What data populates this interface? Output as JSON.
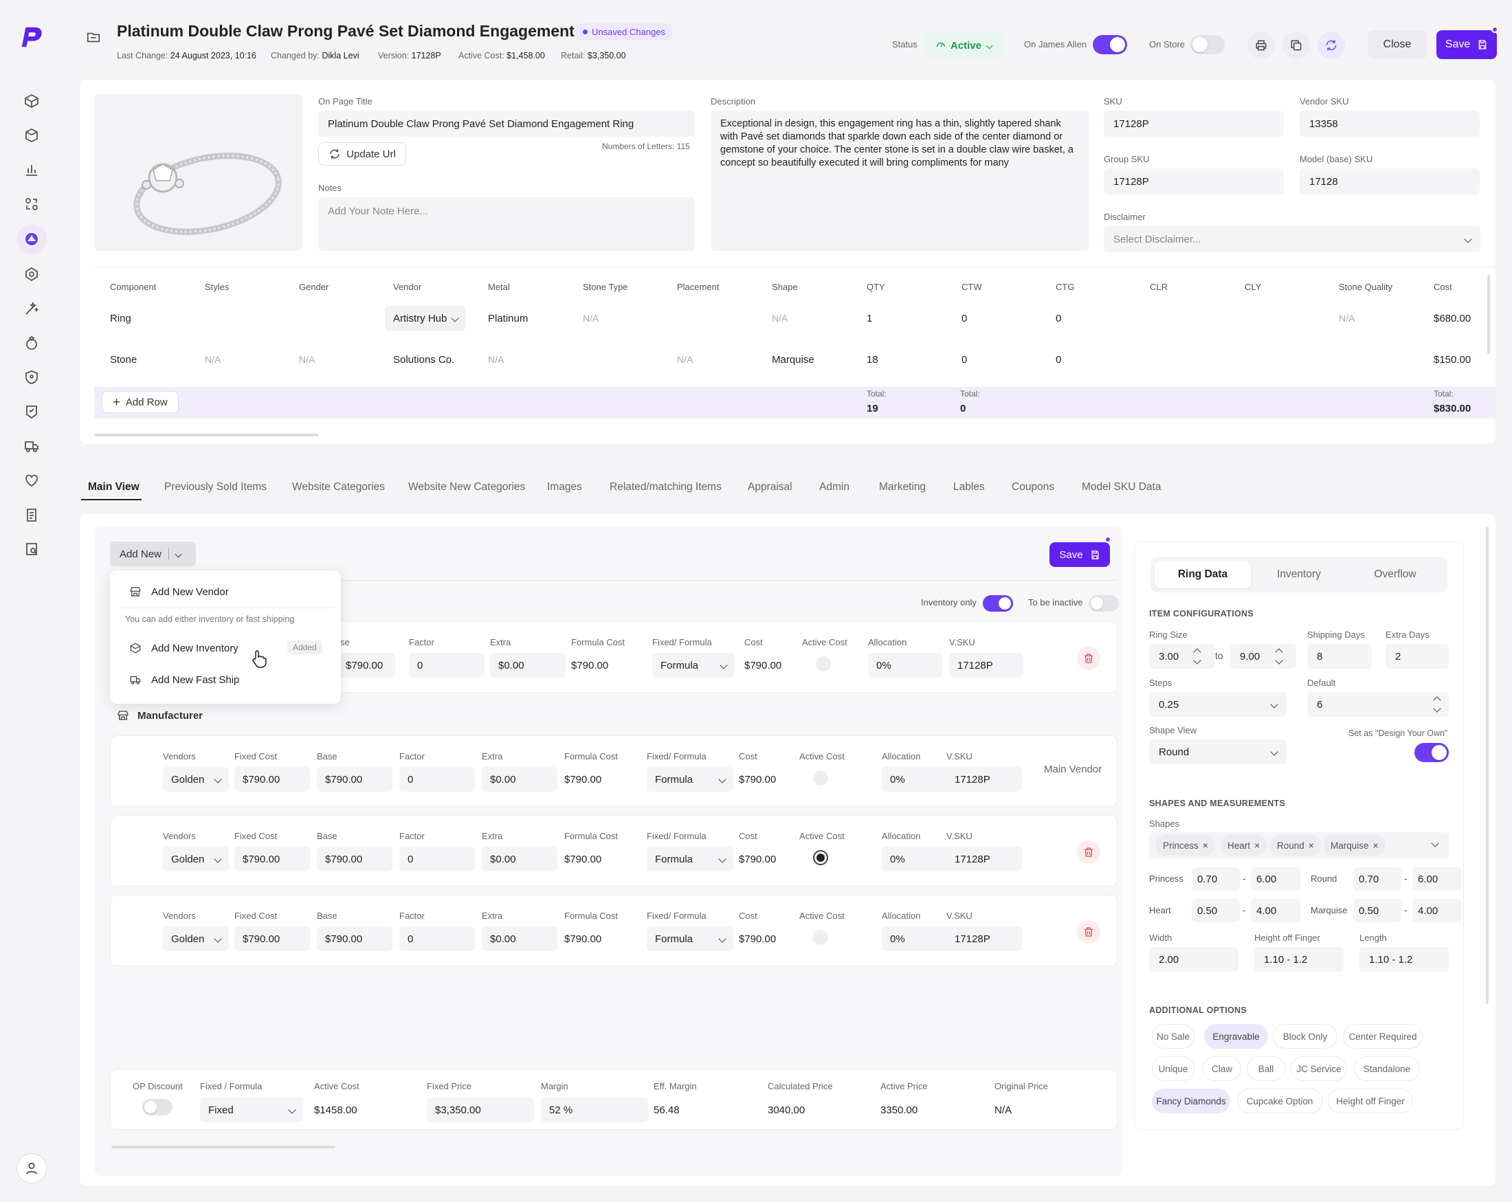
{
  "header": {
    "title": "Platinum Double Claw Prong Pavé Set Diamond Engagement Ring",
    "unsaved_badge": "Unsaved Changes",
    "last_change_label": "Last Change:",
    "last_change_value": "24 August 2023, 10:16",
    "changed_by_label": "Changed by:",
    "changed_by_value": "Dikla Levi",
    "version_label": "Version:",
    "version_value": "17128P",
    "active_cost_label": "Active Cost:",
    "active_cost_value": "$1,458.00",
    "retail_label": "Retail:",
    "retail_value": "$3,350.00",
    "status_label": "Status",
    "status_value": "Active",
    "on_james_allen_label": "On James Allen",
    "on_store_label": "On Store",
    "close_label": "Close",
    "save_label": "Save"
  },
  "product": {
    "on_page_title_label": "On Page Title",
    "on_page_title_value": "Platinum Double Claw Prong Pavé Set Diamond Engagement Ring",
    "update_url_label": "Update Url",
    "letters_count": "Numbers of Letters: 115",
    "notes_label": "Notes",
    "notes_placeholder": "Add Your Note Here...",
    "description_label": "Description",
    "description_value": "Exceptional in design, this engagement ring has a thin, slightly tapered shank with Pavé set diamonds that sparkle down each side of the center diamond or gemstone of your choice. The center stone is set in a double claw wire basket, a concept so beautifully executed it will bring compliments for many",
    "sku_label": "SKU",
    "sku_value": "17128P",
    "vendor_sku_label": "Vendor SKU",
    "vendor_sku_value": "13358",
    "group_sku_label": "Group SKU",
    "group_sku_value": "17128P",
    "model_sku_label": "Model (base) SKU",
    "model_sku_value": "17128",
    "disclaimer_label": "Disclaimer",
    "disclaimer_placeholder": "Select Disclaimer..."
  },
  "components": {
    "headers": [
      "Component",
      "Styles",
      "Gender",
      "Vendor",
      "Metal",
      "Stone Type",
      "Placement",
      "Shape",
      "QTY",
      "CTW",
      "CTG",
      "CLR",
      "CLY",
      "Stone Quality",
      "Cost"
    ],
    "rows": [
      {
        "component": "Ring",
        "styles": "",
        "gender": "",
        "vendor": "Artistry Hub",
        "metal": "Platinum",
        "stone_type": "N/A",
        "placement": "",
        "shape": "N/A",
        "qty": "1",
        "ctw": "0",
        "ctg": "0",
        "clr": "",
        "cly": "",
        "quality": "N/A",
        "cost": "$680.00"
      },
      {
        "component": "Stone",
        "styles": "N/A",
        "gender": "N/A",
        "vendor": "Solutions Co.",
        "metal": "N/A",
        "stone_type": "",
        "placement": "N/A",
        "shape": "Marquise",
        "qty": "18",
        "ctw": "0",
        "ctg": "0",
        "clr": "",
        "cly": "",
        "quality": "",
        "cost": "$150.00"
      }
    ],
    "add_row_label": "Add Row",
    "total_label": "Total:",
    "total_qty": "19",
    "total_ctw": "0",
    "total_cost": "$830.00"
  },
  "tabs": [
    "Main View",
    "Previously Sold Items",
    "Website Categories",
    "Website New Categories",
    "Images",
    "Related/matching Items",
    "Appraisal",
    "Admin",
    "Marketing",
    "Lables",
    "Coupons",
    "Model SKU Data"
  ],
  "main": {
    "add_new_label": "Add New",
    "save_label": "Save",
    "inventory_only_label": "Inventory only",
    "to_be_inactive_label": "To be inactive",
    "manufacturer_label": "Manufacturer",
    "main_vendor_label": "Main Vendor",
    "menu": {
      "add_vendor": "Add New Vendor",
      "hint": "You can add either inventory or fast shipping",
      "add_inventory": "Add New Inventory",
      "added_badge": "Added",
      "add_fast_ship": "Add New Fast Ship"
    },
    "col_labels": {
      "vendors": "Vendors",
      "fixed_cost": "Fixed Cost",
      "base": "Base",
      "factor": "Factor",
      "extra": "Extra",
      "formula_cost": "Formula Cost",
      "fixed_formula": "Fixed/ Formula",
      "cost": "Cost",
      "active_cost": "Active Cost",
      "allocation": "Allocation",
      "vsku": "V.SKU"
    },
    "inventory_row": {
      "base": "$790.00",
      "factor": "0",
      "extra": "$0.00",
      "formula_cost": "$790.00",
      "fixed_formula": "Formula",
      "cost": "$790.00",
      "allocation": "0%",
      "vsku": "17128P",
      "base_label": "se"
    },
    "vendor_rows": [
      {
        "vendor": "Golden",
        "fixed_cost": "$790.00",
        "base": "$790.00",
        "factor": "0",
        "extra": "$0.00",
        "formula_cost": "$790.00",
        "fixed_formula": "Formula",
        "cost": "$790.00",
        "allocation": "0%",
        "vsku": "17128P"
      },
      {
        "vendor": "Golden",
        "fixed_cost": "$790.00",
        "base": "$790.00",
        "factor": "0",
        "extra": "$0.00",
        "formula_cost": "$790.00",
        "fixed_formula": "Formula",
        "cost": "$790.00",
        "allocation": "0%",
        "vsku": "17128P"
      },
      {
        "vendor": "Golden",
        "fixed_cost": "$790.00",
        "base": "$790.00",
        "factor": "0",
        "extra": "$0.00",
        "formula_cost": "$790.00",
        "fixed_formula": "Formula",
        "cost": "$790.00",
        "allocation": "0%",
        "vsku": "17128P"
      }
    ],
    "pricing": {
      "op_discount_label": "OP Discount",
      "fixed_formula_label": "Fixed / Formula",
      "fixed_formula_value": "Fixed",
      "active_cost_label": "Active Cost",
      "active_cost_value": "$1458.00",
      "fixed_price_label": "Fixed Price",
      "fixed_price_value": "$3,350.00",
      "margin_label": "Margin",
      "margin_value": "52 %",
      "eff_margin_label": "Eff. Margin",
      "eff_margin_value": "56.48",
      "calc_price_label": "Calculated Price",
      "calc_price_value": "3040.00",
      "active_price_label": "Active Price",
      "active_price_value": "3350.00",
      "original_price_label": "Original Price",
      "original_price_value": "N/A"
    }
  },
  "right_panel": {
    "tabs": [
      "Ring Data",
      "Inventory",
      "Overflow"
    ],
    "item_config_title": "ITEM CONFIGURATIONS",
    "ring_size_label": "Ring Size",
    "ring_size_from": "3.00",
    "to_label": "to",
    "ring_size_to": "9.00",
    "shipping_days_label": "Shipping Days",
    "shipping_days_value": "8",
    "extra_days_label": "Extra Days",
    "extra_days_value": "2",
    "steps_label": "Steps",
    "steps_value": "0.25",
    "default_label": "Default",
    "default_value": "6",
    "shape_view_label": "Shape View",
    "shape_view_value": "Round",
    "design_own_label": "Set as \"Design Your Own\"",
    "shapes_title": "SHAPES AND MEASUREMENTS",
    "shapes_label": "Shapes",
    "shape_chips": [
      "Princess",
      "Heart",
      "Round",
      "Marquise"
    ],
    "measures": [
      {
        "name": "Princess",
        "min": "0.70",
        "max": "6.00"
      },
      {
        "name": "Round",
        "min": "0.70",
        "max": "6.00"
      },
      {
        "name": "Heart",
        "min": "0.50",
        "max": "4.00"
      },
      {
        "name": "Marquise",
        "min": "0.50",
        "max": "4.00"
      }
    ],
    "dash": "-",
    "width_label": "Width",
    "width_value": "2.00",
    "height_label": "Height off Finger",
    "height_value": "1.10 - 1.2",
    "length_label": "Length",
    "length_value": "1.10 - 1.2",
    "additional_title": "ADDITIONAL OPTIONS",
    "options": [
      {
        "label": "No Sale",
        "selected": false
      },
      {
        "label": "Engravable",
        "selected": true
      },
      {
        "label": "Block Only",
        "selected": false
      },
      {
        "label": "Center Required",
        "selected": false
      },
      {
        "label": "Unique",
        "selected": false
      },
      {
        "label": "Claw",
        "selected": false
      },
      {
        "label": "Ball",
        "selected": false
      },
      {
        "label": "JC Service",
        "selected": false
      },
      {
        "label": "Standalone",
        "selected": false
      },
      {
        "label": "Fancy Diamonds",
        "selected": true
      },
      {
        "label": "Cupcake Option",
        "selected": false
      },
      {
        "label": "Height off Finger",
        "selected": false
      }
    ]
  },
  "colors": {
    "accent": "#6220f0",
    "status_green": "#1a9a52",
    "danger": "#e5484d"
  }
}
